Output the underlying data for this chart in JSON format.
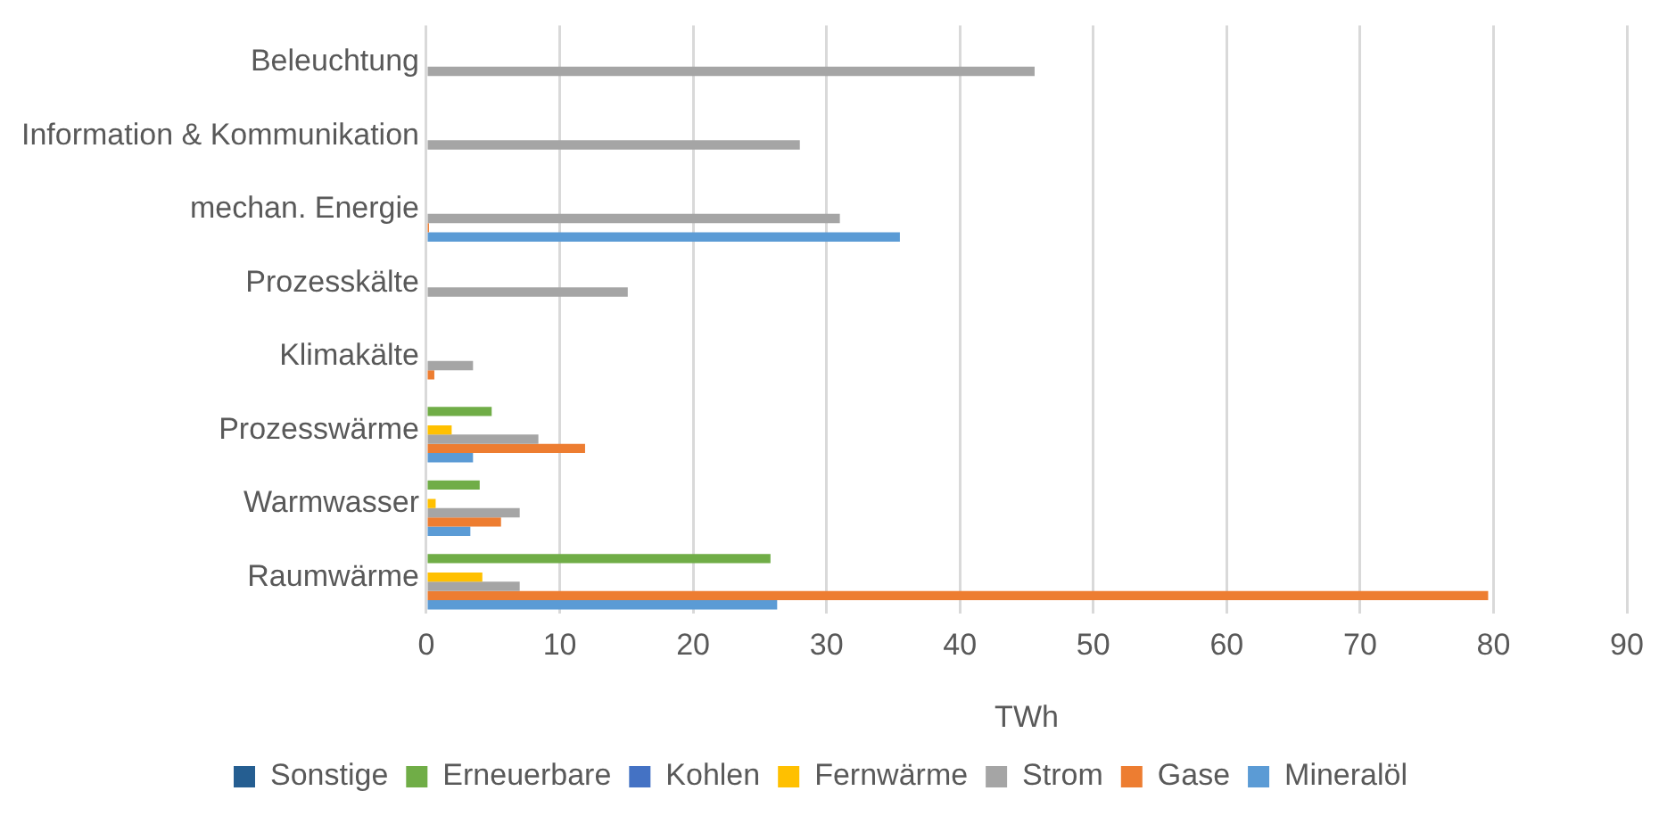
{
  "chart_data": {
    "type": "bar",
    "orientation": "horizontal",
    "xlabel": "TWh",
    "categories": [
      "Beleuchtung",
      "Information & Kommunikation",
      "mechan. Energie",
      "Prozesskälte",
      "Klimakälte",
      "Prozesswärme",
      "Warmwasser",
      "Raumwärme"
    ],
    "series": [
      {
        "name": "Sonstige",
        "color": "#255e91",
        "values": [
          0,
          0,
          0,
          0,
          0,
          0,
          0,
          0
        ]
      },
      {
        "name": "Erneuerbare",
        "color": "#70ad47",
        "values": [
          0,
          0,
          0,
          0,
          0,
          4.9,
          4.0,
          25.8
        ]
      },
      {
        "name": "Kohlen",
        "color": "#4472c4",
        "values": [
          0,
          0,
          0,
          0,
          0,
          0,
          0,
          0
        ]
      },
      {
        "name": "Fernwärme",
        "color": "#ffc000",
        "values": [
          0,
          0,
          0,
          0,
          0,
          1.9,
          0.7,
          4.2
        ]
      },
      {
        "name": "Strom",
        "color": "#a5a5a5",
        "values": [
          45.6,
          28.0,
          31.0,
          15.1,
          3.5,
          8.4,
          7.0,
          7.0
        ]
      },
      {
        "name": "Gase",
        "color": "#ed7d31",
        "values": [
          0,
          0,
          0.2,
          0.1,
          0.6,
          11.9,
          5.6,
          79.6
        ]
      },
      {
        "name": "Mineralöl",
        "color": "#5b9bd5",
        "values": [
          0,
          0,
          35.5,
          0,
          0,
          3.5,
          3.3,
          26.3
        ]
      }
    ],
    "xlim": [
      0,
      90
    ],
    "xticks": [
      0,
      10,
      20,
      30,
      40,
      50,
      60,
      70,
      80,
      90
    ],
    "grid": "x",
    "legend": "bottom"
  }
}
